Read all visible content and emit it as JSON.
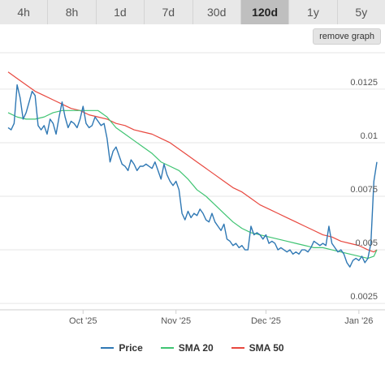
{
  "tabs": [
    {
      "label": "4h"
    },
    {
      "label": "8h"
    },
    {
      "label": "1d"
    },
    {
      "label": "7d"
    },
    {
      "label": "30d"
    },
    {
      "label": "120d",
      "active": true
    },
    {
      "label": "1y"
    },
    {
      "label": "5y"
    }
  ],
  "remove_graph_label": "remove graph",
  "colors": {
    "price": "#2f78b4",
    "sma20": "#3fc472",
    "sma50": "#e8483f",
    "grid": "#e6e6e6",
    "active_tab": "#bfbfbf"
  },
  "chart_data": {
    "type": "line",
    "y_axis_position": "right",
    "ylim": [
      0.0022,
      0.0142
    ],
    "y_ticks": [
      {
        "value": 0.0125,
        "label": "0.0125"
      },
      {
        "value": 0.01,
        "label": "0.01"
      },
      {
        "value": 0.0075,
        "label": "0.0075"
      },
      {
        "value": 0.005,
        "label": "0.005"
      },
      {
        "value": 0.0025,
        "label": "0.0025"
      }
    ],
    "xlim": [
      "2025-09-06",
      "2026-01-07"
    ],
    "x_ticks": [
      {
        "value": "2025-10-01",
        "label": "Oct '25"
      },
      {
        "value": "2025-11-01",
        "label": "Nov '25"
      },
      {
        "value": "2025-12-01",
        "label": "Dec '25"
      },
      {
        "value": "2026-01-01",
        "label": "Jan '26"
      }
    ],
    "grid": "horizontal",
    "legend_position": "bottom",
    "series": [
      {
        "name": "Price",
        "color": "#2f78b4",
        "points": [
          [
            "2025-09-06",
            0.0107
          ],
          [
            "2025-09-07",
            0.0106
          ],
          [
            "2025-09-08",
            0.0109
          ],
          [
            "2025-09-09",
            0.0127
          ],
          [
            "2025-09-10",
            0.0121
          ],
          [
            "2025-09-11",
            0.0111
          ],
          [
            "2025-09-12",
            0.0114
          ],
          [
            "2025-09-13",
            0.0119
          ],
          [
            "2025-09-14",
            0.0124
          ],
          [
            "2025-09-15",
            0.0122
          ],
          [
            "2025-09-16",
            0.0108
          ],
          [
            "2025-09-17",
            0.0106
          ],
          [
            "2025-09-18",
            0.0108
          ],
          [
            "2025-09-19",
            0.0104
          ],
          [
            "2025-09-20",
            0.0111
          ],
          [
            "2025-09-21",
            0.0109
          ],
          [
            "2025-09-22",
            0.0104
          ],
          [
            "2025-09-23",
            0.0112
          ],
          [
            "2025-09-24",
            0.0119
          ],
          [
            "2025-09-25",
            0.0112
          ],
          [
            "2025-09-26",
            0.0107
          ],
          [
            "2025-09-27",
            0.011
          ],
          [
            "2025-09-28",
            0.0109
          ],
          [
            "2025-09-29",
            0.0107
          ],
          [
            "2025-09-30",
            0.0111
          ],
          [
            "2025-10-01",
            0.0117
          ],
          [
            "2025-10-02",
            0.0109
          ],
          [
            "2025-10-03",
            0.0107
          ],
          [
            "2025-10-04",
            0.0108
          ],
          [
            "2025-10-05",
            0.0112
          ],
          [
            "2025-10-06",
            0.011
          ],
          [
            "2025-10-07",
            0.0108
          ],
          [
            "2025-10-08",
            0.0109
          ],
          [
            "2025-10-09",
            0.0102
          ],
          [
            "2025-10-10",
            0.0091
          ],
          [
            "2025-10-11",
            0.0096
          ],
          [
            "2025-10-12",
            0.0098
          ],
          [
            "2025-10-13",
            0.0094
          ],
          [
            "2025-10-14",
            0.009
          ],
          [
            "2025-10-15",
            0.0089
          ],
          [
            "2025-10-16",
            0.0087
          ],
          [
            "2025-10-17",
            0.0092
          ],
          [
            "2025-10-18",
            0.009
          ],
          [
            "2025-10-19",
            0.0087
          ],
          [
            "2025-10-20",
            0.0089
          ],
          [
            "2025-10-21",
            0.0089
          ],
          [
            "2025-10-22",
            0.009
          ],
          [
            "2025-10-23",
            0.0089
          ],
          [
            "2025-10-24",
            0.0088
          ],
          [
            "2025-10-25",
            0.0091
          ],
          [
            "2025-10-26",
            0.0087
          ],
          [
            "2025-10-27",
            0.0083
          ],
          [
            "2025-10-28",
            0.009
          ],
          [
            "2025-10-29",
            0.0085
          ],
          [
            "2025-10-30",
            0.0082
          ],
          [
            "2025-10-31",
            0.008
          ],
          [
            "2025-11-01",
            0.0082
          ],
          [
            "2025-11-02",
            0.0078
          ],
          [
            "2025-11-03",
            0.0067
          ],
          [
            "2025-11-04",
            0.0064
          ],
          [
            "2025-11-05",
            0.0068
          ],
          [
            "2025-11-06",
            0.0065
          ],
          [
            "2025-11-07",
            0.0067
          ],
          [
            "2025-11-08",
            0.0066
          ],
          [
            "2025-11-09",
            0.0069
          ],
          [
            "2025-11-10",
            0.0067
          ],
          [
            "2025-11-11",
            0.0064
          ],
          [
            "2025-11-12",
            0.0063
          ],
          [
            "2025-11-13",
            0.0067
          ],
          [
            "2025-11-14",
            0.0063
          ],
          [
            "2025-11-15",
            0.0061
          ],
          [
            "2025-11-16",
            0.0059
          ],
          [
            "2025-11-17",
            0.0062
          ],
          [
            "2025-11-18",
            0.0055
          ],
          [
            "2025-11-19",
            0.0054
          ],
          [
            "2025-11-20",
            0.0052
          ],
          [
            "2025-11-21",
            0.0053
          ],
          [
            "2025-11-22",
            0.0051
          ],
          [
            "2025-11-23",
            0.0052
          ],
          [
            "2025-11-24",
            0.005
          ],
          [
            "2025-11-25",
            0.005
          ],
          [
            "2025-11-26",
            0.0061
          ],
          [
            "2025-11-27",
            0.0057
          ],
          [
            "2025-11-28",
            0.0058
          ],
          [
            "2025-11-29",
            0.0057
          ],
          [
            "2025-11-30",
            0.0055
          ],
          [
            "2025-12-01",
            0.0057
          ],
          [
            "2025-12-02",
            0.0053
          ],
          [
            "2025-12-03",
            0.0054
          ],
          [
            "2025-12-04",
            0.0053
          ],
          [
            "2025-12-05",
            0.005
          ],
          [
            "2025-12-06",
            0.0051
          ],
          [
            "2025-12-07",
            0.005
          ],
          [
            "2025-12-08",
            0.0049
          ],
          [
            "2025-12-09",
            0.005
          ],
          [
            "2025-12-10",
            0.0048
          ],
          [
            "2025-12-11",
            0.0049
          ],
          [
            "2025-12-12",
            0.0048
          ],
          [
            "2025-12-13",
            0.005
          ],
          [
            "2025-12-14",
            0.005
          ],
          [
            "2025-12-15",
            0.0049
          ],
          [
            "2025-12-16",
            0.0051
          ],
          [
            "2025-12-17",
            0.0054
          ],
          [
            "2025-12-18",
            0.0053
          ],
          [
            "2025-12-19",
            0.0052
          ],
          [
            "2025-12-20",
            0.0053
          ],
          [
            "2025-12-21",
            0.0052
          ],
          [
            "2025-12-22",
            0.0061
          ],
          [
            "2025-12-23",
            0.0053
          ],
          [
            "2025-12-24",
            0.0051
          ],
          [
            "2025-12-25",
            0.0049
          ],
          [
            "2025-12-26",
            0.005
          ],
          [
            "2025-12-27",
            0.0048
          ],
          [
            "2025-12-28",
            0.0044
          ],
          [
            "2025-12-29",
            0.0042
          ],
          [
            "2025-12-30",
            0.0045
          ],
          [
            "2025-12-31",
            0.0046
          ],
          [
            "2026-01-01",
            0.0045
          ],
          [
            "2026-01-02",
            0.0047
          ],
          [
            "2026-01-03",
            0.0044
          ],
          [
            "2026-01-04",
            0.0046
          ],
          [
            "2026-01-05",
            0.0053
          ],
          [
            "2026-01-06",
            0.0082
          ],
          [
            "2026-01-07",
            0.0091
          ]
        ]
      },
      {
        "name": "SMA 20",
        "color": "#3fc472",
        "points": [
          [
            "2025-09-06",
            0.0114
          ],
          [
            "2025-09-09",
            0.0112
          ],
          [
            "2025-09-12",
            0.0111
          ],
          [
            "2025-09-15",
            0.0111
          ],
          [
            "2025-09-18",
            0.0112
          ],
          [
            "2025-09-21",
            0.0114
          ],
          [
            "2025-09-24",
            0.0115
          ],
          [
            "2025-09-27",
            0.0115
          ],
          [
            "2025-09-30",
            0.0115
          ],
          [
            "2025-10-03",
            0.0115
          ],
          [
            "2025-10-06",
            0.0115
          ],
          [
            "2025-10-09",
            0.0112
          ],
          [
            "2025-10-12",
            0.0107
          ],
          [
            "2025-10-15",
            0.0104
          ],
          [
            "2025-10-18",
            0.0101
          ],
          [
            "2025-10-21",
            0.0098
          ],
          [
            "2025-10-24",
            0.0095
          ],
          [
            "2025-10-27",
            0.0091
          ],
          [
            "2025-10-30",
            0.0089
          ],
          [
            "2025-11-02",
            0.0087
          ],
          [
            "2025-11-05",
            0.0083
          ],
          [
            "2025-11-08",
            0.0078
          ],
          [
            "2025-11-11",
            0.0075
          ],
          [
            "2025-11-14",
            0.0071
          ],
          [
            "2025-11-17",
            0.0067
          ],
          [
            "2025-11-20",
            0.0063
          ],
          [
            "2025-11-23",
            0.006
          ],
          [
            "2025-11-26",
            0.0058
          ],
          [
            "2025-11-29",
            0.0057
          ],
          [
            "2025-12-02",
            0.0056
          ],
          [
            "2025-12-05",
            0.0055
          ],
          [
            "2025-12-08",
            0.0054
          ],
          [
            "2025-12-11",
            0.0053
          ],
          [
            "2025-12-14",
            0.0052
          ],
          [
            "2025-12-17",
            0.0051
          ],
          [
            "2025-12-20",
            0.0051
          ],
          [
            "2025-12-23",
            0.005
          ],
          [
            "2025-12-26",
            0.0049
          ],
          [
            "2025-12-29",
            0.0048
          ],
          [
            "2026-01-01",
            0.0047
          ],
          [
            "2026-01-04",
            0.0046
          ],
          [
            "2026-01-06",
            0.0047
          ],
          [
            "2026-01-07",
            0.005
          ]
        ]
      },
      {
        "name": "SMA 50",
        "color": "#e8483f",
        "points": [
          [
            "2025-09-06",
            0.0133
          ],
          [
            "2025-09-09",
            0.013
          ],
          [
            "2025-09-12",
            0.0127
          ],
          [
            "2025-09-15",
            0.0124
          ],
          [
            "2025-09-18",
            0.0122
          ],
          [
            "2025-09-21",
            0.012
          ],
          [
            "2025-09-24",
            0.0118
          ],
          [
            "2025-09-27",
            0.0116
          ],
          [
            "2025-09-30",
            0.0115
          ],
          [
            "2025-10-03",
            0.0113
          ],
          [
            "2025-10-06",
            0.0112
          ],
          [
            "2025-10-09",
            0.0111
          ],
          [
            "2025-10-12",
            0.0109
          ],
          [
            "2025-10-15",
            0.0108
          ],
          [
            "2025-10-18",
            0.0106
          ],
          [
            "2025-10-21",
            0.0105
          ],
          [
            "2025-10-24",
            0.0104
          ],
          [
            "2025-10-27",
            0.0102
          ],
          [
            "2025-10-30",
            0.01
          ],
          [
            "2025-11-02",
            0.0097
          ],
          [
            "2025-11-05",
            0.0094
          ],
          [
            "2025-11-08",
            0.0091
          ],
          [
            "2025-11-11",
            0.0088
          ],
          [
            "2025-11-14",
            0.0085
          ],
          [
            "2025-11-17",
            0.0082
          ],
          [
            "2025-11-20",
            0.0079
          ],
          [
            "2025-11-23",
            0.0077
          ],
          [
            "2025-11-26",
            0.0074
          ],
          [
            "2025-11-29",
            0.0071
          ],
          [
            "2025-12-02",
            0.0069
          ],
          [
            "2025-12-05",
            0.0067
          ],
          [
            "2025-12-08",
            0.0065
          ],
          [
            "2025-12-11",
            0.0063
          ],
          [
            "2025-12-14",
            0.0061
          ],
          [
            "2025-12-17",
            0.0059
          ],
          [
            "2025-12-20",
            0.0057
          ],
          [
            "2025-12-23",
            0.0056
          ],
          [
            "2025-12-26",
            0.0054
          ],
          [
            "2025-12-29",
            0.0053
          ],
          [
            "2026-01-01",
            0.0052
          ],
          [
            "2026-01-04",
            0.005
          ],
          [
            "2026-01-06",
            0.0049
          ],
          [
            "2026-01-07",
            0.005
          ]
        ]
      }
    ]
  }
}
